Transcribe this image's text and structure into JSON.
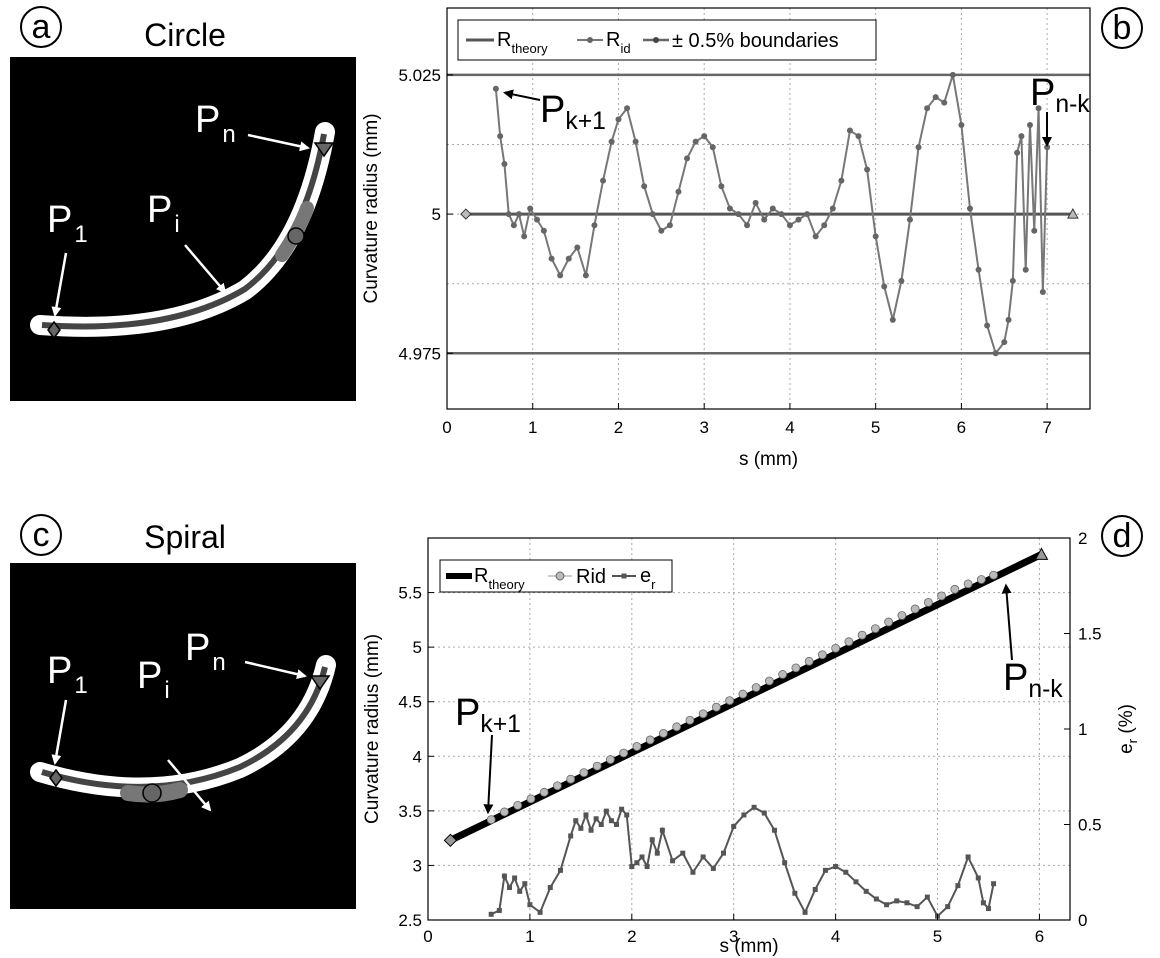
{
  "panels": {
    "a": {
      "letter": "a",
      "title": "Circle",
      "labels": {
        "p1": "P",
        "p1_sub": "1",
        "pi": "P",
        "pi_sub": "i",
        "pn": "P",
        "pn_sub": "n"
      }
    },
    "c": {
      "letter": "c",
      "title": "Spiral",
      "labels": {
        "p1": "P",
        "p1_sub": "1",
        "pi": "P",
        "pi_sub": "i",
        "pn": "P",
        "pn_sub": "n"
      }
    }
  },
  "chart_data": [
    {
      "id": "b",
      "letter": "b",
      "type": "line",
      "xlabel": "s (mm)",
      "ylabel": "Curvature radius (mm)",
      "xlim": [
        0,
        7.5
      ],
      "ylim": [
        4.965,
        5.037
      ],
      "x_ticks": [
        0,
        1,
        2,
        3,
        4,
        5,
        6,
        7
      ],
      "x_tick_labels": [
        "0",
        "1",
        "2",
        "3",
        "4",
        "5",
        "6",
        "7"
      ],
      "y_ticks": [
        4.975,
        5,
        5.025
      ],
      "y_tick_labels": [
        "4.975",
        "5",
        "5.025"
      ],
      "grid": true,
      "legend": {
        "placement": "top-left",
        "entries": [
          {
            "label": "R",
            "sub": "theory"
          },
          {
            "label": "R",
            "sub": "id"
          },
          {
            "label": "± 0.5% boundaries",
            "sub": ""
          }
        ]
      },
      "annotations": [
        {
          "main": "P",
          "sub": "k+1",
          "x": 0.57,
          "y": 5.0225
        },
        {
          "main": "P",
          "sub": "n-k",
          "x": 7.0,
          "y": 5.012
        }
      ],
      "colors": {
        "theory": "#555555",
        "rid": "#777777",
        "boundary": "#666666"
      },
      "series": [
        {
          "label": "R_theory",
          "x": [
            0.22,
            7.3
          ],
          "y": [
            5.0,
            5.0
          ]
        },
        {
          "label": "+0.5%",
          "x": [
            0,
            7.5
          ],
          "y": [
            5.025,
            5.025
          ]
        },
        {
          "label": "-0.5%",
          "x": [
            0,
            7.5
          ],
          "y": [
            4.975,
            4.975
          ]
        },
        {
          "label": "R_id",
          "x": [
            0.57,
            0.62,
            0.67,
            0.72,
            0.78,
            0.84,
            0.9,
            0.97,
            1.05,
            1.13,
            1.22,
            1.32,
            1.42,
            1.52,
            1.62,
            1.72,
            1.82,
            1.92,
            2.0,
            2.1,
            2.2,
            2.3,
            2.4,
            2.5,
            2.6,
            2.7,
            2.8,
            2.9,
            3.0,
            3.1,
            3.2,
            3.3,
            3.4,
            3.5,
            3.6,
            3.7,
            3.8,
            3.9,
            4.0,
            4.1,
            4.2,
            4.3,
            4.4,
            4.5,
            4.6,
            4.7,
            4.8,
            4.9,
            5.0,
            5.1,
            5.2,
            5.3,
            5.4,
            5.5,
            5.6,
            5.7,
            5.8,
            5.9,
            6.0,
            6.1,
            6.2,
            6.3,
            6.4,
            6.5,
            6.55,
            6.6,
            6.65,
            6.7,
            6.75,
            6.8,
            6.85,
            6.9,
            6.95,
            7.0
          ],
          "y": [
            5.0225,
            5.014,
            5.009,
            5.0,
            4.998,
            5.0,
            4.996,
            5.001,
            4.999,
            4.997,
            4.992,
            4.989,
            4.992,
            4.994,
            4.989,
            4.998,
            5.006,
            5.013,
            5.017,
            5.019,
            5.013,
            5.005,
            5.0,
            4.997,
            4.998,
            5.004,
            5.01,
            5.013,
            5.014,
            5.012,
            5.005,
            5.001,
            5.0,
            4.998,
            5.002,
            4.999,
            5.001,
            5.0,
            4.998,
            4.999,
            5.0,
            4.996,
            4.998,
            5.001,
            5.006,
            5.015,
            5.014,
            5.008,
            4.996,
            4.987,
            4.981,
            4.988,
            4.999,
            5.012,
            5.019,
            5.021,
            5.02,
            5.025,
            5.016,
            5.001,
            4.99,
            4.98,
            4.975,
            4.977,
            4.981,
            4.988,
            5.011,
            5.014,
            4.99,
            5.016,
            4.997,
            5.019,
            4.986,
            5.012
          ]
        }
      ]
    },
    {
      "id": "d",
      "letter": "d",
      "type": "line",
      "xlabel": "s (mm)",
      "ylabel": "Curvature radius (mm)",
      "ylabel_right": "e",
      "ylabel_right_sub": "r",
      "ylabel_right_suffix": " (%)",
      "xlim": [
        0,
        6.3
      ],
      "ylim": [
        2.5,
        6.0
      ],
      "ylim_right": [
        0,
        2
      ],
      "x_ticks": [
        0,
        1,
        2,
        3,
        4,
        5,
        6
      ],
      "x_tick_labels": [
        "0",
        "1",
        "2",
        "3",
        "4",
        "5",
        "6"
      ],
      "y_ticks": [
        2.5,
        3,
        3.5,
        4,
        4.5,
        5,
        5.5
      ],
      "y_tick_labels": [
        "2.5",
        "3",
        "3.5",
        "4",
        "4.5",
        "5",
        "5.5"
      ],
      "y_right_ticks": [
        0,
        0.5,
        1,
        1.5,
        2
      ],
      "y_right_tick_labels": [
        "0",
        "0.5",
        "1",
        "1.5",
        "2"
      ],
      "grid": true,
      "legend": {
        "placement": "top-left",
        "entries": [
          {
            "label": "R",
            "sub": "theory"
          },
          {
            "label": "Rid",
            "sub": ""
          },
          {
            "label": "e",
            "sub": "r"
          }
        ]
      },
      "annotations": [
        {
          "main": "P",
          "sub": "k+1",
          "x": 0.62,
          "y": 3.45
        },
        {
          "main": "P",
          "sub": "n-k",
          "x": 5.55,
          "y": 5.62
        }
      ],
      "colors": {
        "theory": "#000000",
        "rid": "#bbbbbb",
        "er": "#555555"
      },
      "series": [
        {
          "label": "R_theory",
          "x": [
            0.22,
            6.02
          ],
          "y": [
            3.23,
            5.85
          ]
        },
        {
          "label": "Rid",
          "x": [
            0.62,
            0.75,
            0.88,
            1.01,
            1.14,
            1.27,
            1.4,
            1.53,
            1.66,
            1.79,
            1.92,
            2.05,
            2.18,
            2.31,
            2.44,
            2.57,
            2.7,
            2.83,
            2.96,
            3.09,
            3.22,
            3.35,
            3.48,
            3.61,
            3.74,
            3.87,
            4.0,
            4.13,
            4.26,
            4.39,
            4.52,
            4.65,
            4.78,
            4.91,
            5.04,
            5.17,
            5.3,
            5.43,
            5.55
          ],
          "y": [
            3.42,
            3.49,
            3.55,
            3.61,
            3.67,
            3.73,
            3.79,
            3.85,
            3.91,
            3.97,
            4.03,
            4.09,
            4.15,
            4.21,
            4.27,
            4.33,
            4.39,
            4.45,
            4.51,
            4.57,
            4.63,
            4.69,
            4.75,
            4.81,
            4.87,
            4.93,
            4.99,
            5.05,
            5.11,
            5.17,
            5.23,
            5.29,
            5.35,
            5.41,
            5.47,
            5.53,
            5.58,
            5.62,
            5.66
          ]
        },
        {
          "label": "e_r",
          "axis": "right",
          "x": [
            0.62,
            0.7,
            0.75,
            0.8,
            0.85,
            0.9,
            0.95,
            1.0,
            1.1,
            1.2,
            1.3,
            1.4,
            1.45,
            1.5,
            1.55,
            1.6,
            1.65,
            1.7,
            1.75,
            1.8,
            1.85,
            1.9,
            1.95,
            2.0,
            2.05,
            2.1,
            2.15,
            2.2,
            2.25,
            2.3,
            2.4,
            2.5,
            2.6,
            2.7,
            2.8,
            2.9,
            3.0,
            3.1,
            3.2,
            3.3,
            3.4,
            3.5,
            3.6,
            3.7,
            3.8,
            3.9,
            4.0,
            4.1,
            4.2,
            4.3,
            4.4,
            4.5,
            4.6,
            4.7,
            4.8,
            4.9,
            5.0,
            5.1,
            5.2,
            5.3,
            5.4,
            5.45,
            5.5,
            5.55
          ],
          "y": [
            0.03,
            0.05,
            0.23,
            0.17,
            0.22,
            0.15,
            0.19,
            0.08,
            0.04,
            0.17,
            0.26,
            0.44,
            0.52,
            0.48,
            0.55,
            0.47,
            0.53,
            0.5,
            0.57,
            0.52,
            0.5,
            0.58,
            0.55,
            0.28,
            0.3,
            0.33,
            0.28,
            0.42,
            0.35,
            0.47,
            0.31,
            0.35,
            0.25,
            0.33,
            0.27,
            0.35,
            0.49,
            0.55,
            0.59,
            0.56,
            0.47,
            0.3,
            0.14,
            0.04,
            0.16,
            0.26,
            0.28,
            0.25,
            0.2,
            0.15,
            0.11,
            0.08,
            0.1,
            0.09,
            0.07,
            0.12,
            0.02,
            0.07,
            0.18,
            0.33,
            0.22,
            0.09,
            0.06,
            0.19
          ]
        }
      ]
    }
  ]
}
